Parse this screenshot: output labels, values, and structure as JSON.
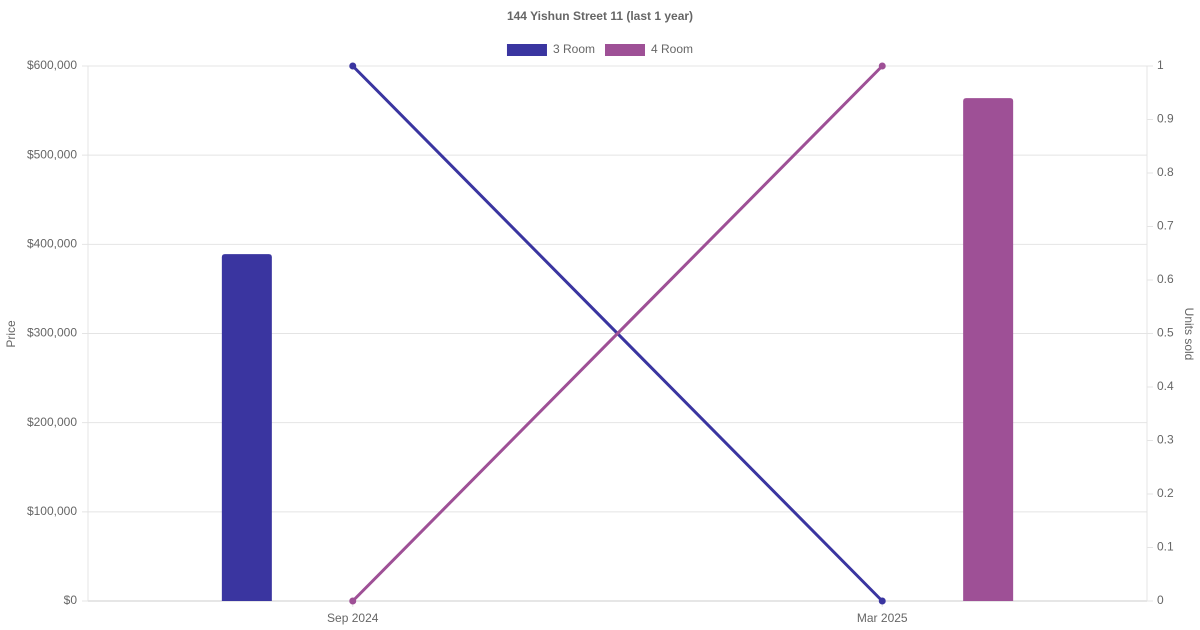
{
  "chart_data": {
    "type": "bar-line",
    "title": "144 Yishun Street 11 (last 1 year)",
    "categories": [
      "Sep 2024",
      "Mar 2025"
    ],
    "series": [
      {
        "name": "3 Room",
        "color": "#3a35a0",
        "type": "bar",
        "values": [
          389000,
          null
        ]
      },
      {
        "name": "4 Room",
        "color": "#9e5096",
        "type": "bar",
        "values": [
          null,
          564000
        ]
      },
      {
        "color": "#3a35a0",
        "type": "line",
        "axis": "y2",
        "values": [
          1,
          0
        ]
      },
      {
        "color": "#9e5096",
        "type": "line",
        "axis": "y2",
        "values": [
          0,
          1
        ]
      }
    ],
    "ylabel": "Price",
    "y2label": "Units sold",
    "ylim": [
      0,
      600000
    ],
    "yticks": [
      {
        "value": 0,
        "label": "$0"
      },
      {
        "value": 100000,
        "label": "$100,000"
      },
      {
        "value": 200000,
        "label": "$200,000"
      },
      {
        "value": 300000,
        "label": "$300,000"
      },
      {
        "value": 400000,
        "label": "$400,000"
      },
      {
        "value": 500000,
        "label": "$500,000"
      },
      {
        "value": 600000,
        "label": "$600,000"
      }
    ],
    "y2lim": [
      0,
      1
    ],
    "y2ticks": [
      0,
      0.1,
      0.2,
      0.3,
      0.4,
      0.5,
      0.6,
      0.7,
      0.8,
      0.9,
      1
    ],
    "grid": true,
    "legend": "top"
  }
}
